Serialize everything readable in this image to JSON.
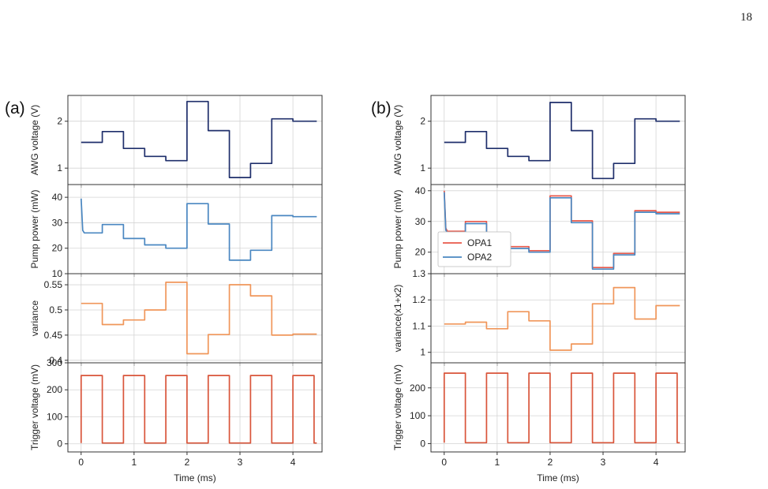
{
  "page_number": "18",
  "chart_data": [
    {
      "panel": "(a)",
      "type": "line",
      "xlabel": "Time (ms)",
      "xlim": [
        -0.25,
        4.55
      ],
      "xticks": [
        0,
        1,
        2,
        3,
        4
      ],
      "subplots": [
        {
          "ylabel": "AWG voltage (V)",
          "ylim": [
            0.65,
            2.55
          ],
          "yticks": [
            1,
            2
          ],
          "series": [
            {
              "color": "#1f2f6b",
              "segments": [
                [
                  0,
                  0.4,
                  1.55
                ],
                [
                  0.4,
                  0.8,
                  1.78
                ],
                [
                  0.8,
                  1.2,
                  1.42
                ],
                [
                  1.2,
                  1.6,
                  1.25
                ],
                [
                  1.6,
                  2.0,
                  1.16
                ],
                [
                  2.0,
                  2.4,
                  2.42
                ],
                [
                  2.4,
                  2.8,
                  1.8
                ],
                [
                  2.8,
                  3.2,
                  0.8
                ],
                [
                  3.2,
                  3.6,
                  1.1
                ],
                [
                  3.6,
                  4.0,
                  2.05
                ],
                [
                  4.0,
                  4.45,
                  2.0
                ]
              ]
            }
          ]
        },
        {
          "ylabel": "Pump power (mW)",
          "ylim": [
            10,
            45
          ],
          "yticks": [
            10,
            20,
            30,
            40
          ],
          "series": [
            {
              "color": "#4a87c1",
              "start_spike": 39.5,
              "segments": [
                [
                  0,
                  0.4,
                  26
                ],
                [
                  0.4,
                  0.8,
                  29.3
                ],
                [
                  0.8,
                  1.2,
                  23.8
                ],
                [
                  1.2,
                  1.6,
                  21.3
                ],
                [
                  1.6,
                  2.0,
                  20
                ],
                [
                  2.0,
                  2.4,
                  37.5
                ],
                [
                  2.4,
                  2.8,
                  29.5
                ],
                [
                  2.8,
                  3.2,
                  15.3
                ],
                [
                  3.2,
                  3.6,
                  19.2
                ],
                [
                  3.6,
                  4.0,
                  32.8
                ],
                [
                  4.0,
                  4.45,
                  32.4
                ]
              ]
            }
          ]
        },
        {
          "ylabel": "variance",
          "ylim": [
            0.395,
            0.572
          ],
          "yticks": [
            0.4,
            0.45,
            0.5,
            0.55
          ],
          "series": [
            {
              "color": "#f0965a",
              "segments": [
                [
                  0,
                  0.4,
                  0.513
                ],
                [
                  0.4,
                  0.8,
                  0.471
                ],
                [
                  0.8,
                  1.2,
                  0.48
                ],
                [
                  1.2,
                  1.6,
                  0.5
                ],
                [
                  1.6,
                  2.0,
                  0.555
                ],
                [
                  2.0,
                  2.4,
                  0.413
                ],
                [
                  2.4,
                  2.8,
                  0.451
                ],
                [
                  2.8,
                  3.2,
                  0.55
                ],
                [
                  3.2,
                  3.6,
                  0.528
                ],
                [
                  3.6,
                  4.0,
                  0.45
                ],
                [
                  4.0,
                  4.45,
                  0.452
                ]
              ]
            }
          ]
        },
        {
          "ylabel": "Trigger voltage (mV)",
          "ylim": [
            -30,
            300
          ],
          "yticks": [
            0,
            100,
            200,
            300
          ],
          "series": [
            {
              "color": "#d9553a",
              "square": true,
              "period": 0.8,
              "high_duration": 0.4,
              "high": 253,
              "low": 3,
              "xmax": 4.45
            }
          ]
        }
      ]
    },
    {
      "panel": "(b)",
      "type": "line",
      "xlabel": "Time (ms)",
      "xlim": [
        -0.25,
        4.55
      ],
      "xticks": [
        0,
        1,
        2,
        3,
        4
      ],
      "subplots": [
        {
          "ylabel": "AWG voltage (V)",
          "ylim": [
            0.65,
            2.55
          ],
          "yticks": [
            1,
            2
          ],
          "series": [
            {
              "color": "#1f2f6b",
              "segments": [
                [
                  0,
                  0.4,
                  1.55
                ],
                [
                  0.4,
                  0.8,
                  1.78
                ],
                [
                  0.8,
                  1.2,
                  1.42
                ],
                [
                  1.2,
                  1.6,
                  1.25
                ],
                [
                  1.6,
                  2.0,
                  1.16
                ],
                [
                  2.0,
                  2.4,
                  2.4
                ],
                [
                  2.4,
                  2.8,
                  1.8
                ],
                [
                  2.8,
                  3.2,
                  0.78
                ],
                [
                  3.2,
                  3.6,
                  1.1
                ],
                [
                  3.6,
                  4.0,
                  2.05
                ],
                [
                  4.0,
                  4.45,
                  2.0
                ]
              ]
            }
          ]
        },
        {
          "ylabel": "Pump power (mW)",
          "ylim": [
            13,
            42
          ],
          "yticks": [
            20,
            30,
            40
          ],
          "legend": {
            "entries": [
              "OPA1",
              "OPA2"
            ],
            "placement": "lower-left"
          },
          "series": [
            {
              "name": "OPA1",
              "color": "#e8584a",
              "start_spike": 40,
              "segments": [
                [
                  0,
                  0.4,
                  26.8
                ],
                [
                  0.4,
                  0.8,
                  30
                ],
                [
                  0.8,
                  1.2,
                  24.8
                ],
                [
                  1.2,
                  1.6,
                  21.8
                ],
                [
                  1.6,
                  2.0,
                  20.5
                ],
                [
                  2.0,
                  2.4,
                  38.3
                ],
                [
                  2.4,
                  2.8,
                  30.2
                ],
                [
                  2.8,
                  3.2,
                  15
                ],
                [
                  3.2,
                  3.6,
                  19.6
                ],
                [
                  3.6,
                  4.0,
                  33.5
                ],
                [
                  4.0,
                  4.45,
                  33
                ]
              ]
            },
            {
              "name": "OPA2",
              "color": "#4a87c1",
              "start_spike": 39.5,
              "segments": [
                [
                  0,
                  0.4,
                  26.2
                ],
                [
                  0.4,
                  0.8,
                  29.3
                ],
                [
                  0.8,
                  1.2,
                  24.2
                ],
                [
                  1.2,
                  1.6,
                  21.2
                ],
                [
                  1.6,
                  2.0,
                  20
                ],
                [
                  2.0,
                  2.4,
                  37.7
                ],
                [
                  2.4,
                  2.8,
                  29.6
                ],
                [
                  2.8,
                  3.2,
                  14.5
                ],
                [
                  3.2,
                  3.6,
                  19.1
                ],
                [
                  3.6,
                  4.0,
                  33
                ],
                [
                  4.0,
                  4.45,
                  32.5
                ]
              ]
            }
          ]
        },
        {
          "ylabel": "variance(x1+x2)",
          "ylim": [
            0.96,
            1.3
          ],
          "yticks": [
            1.0,
            1.1,
            1.2,
            1.3
          ],
          "series": [
            {
              "color": "#f0965a",
              "segments": [
                [
                  0,
                  0.4,
                  1.108
                ],
                [
                  0.4,
                  0.8,
                  1.115
                ],
                [
                  0.8,
                  1.2,
                  1.09
                ],
                [
                  1.2,
                  1.6,
                  1.155
                ],
                [
                  1.6,
                  2.0,
                  1.12
                ],
                [
                  2.0,
                  2.4,
                  1.008
                ],
                [
                  2.4,
                  2.8,
                  1.032
                ],
                [
                  2.8,
                  3.2,
                  1.185
                ],
                [
                  3.2,
                  3.6,
                  1.247
                ],
                [
                  3.6,
                  4.0,
                  1.127
                ],
                [
                  4.0,
                  4.45,
                  1.178
                ]
              ]
            }
          ]
        },
        {
          "ylabel": "Trigger voltage (mV)",
          "ylim": [
            -30,
            290
          ],
          "yticks": [
            0,
            100,
            200
          ],
          "series": [
            {
              "color": "#d9553a",
              "square": true,
              "period": 0.8,
              "high_duration": 0.4,
              "high": 253,
              "low": 3,
              "xmax": 4.45
            }
          ]
        }
      ]
    }
  ]
}
